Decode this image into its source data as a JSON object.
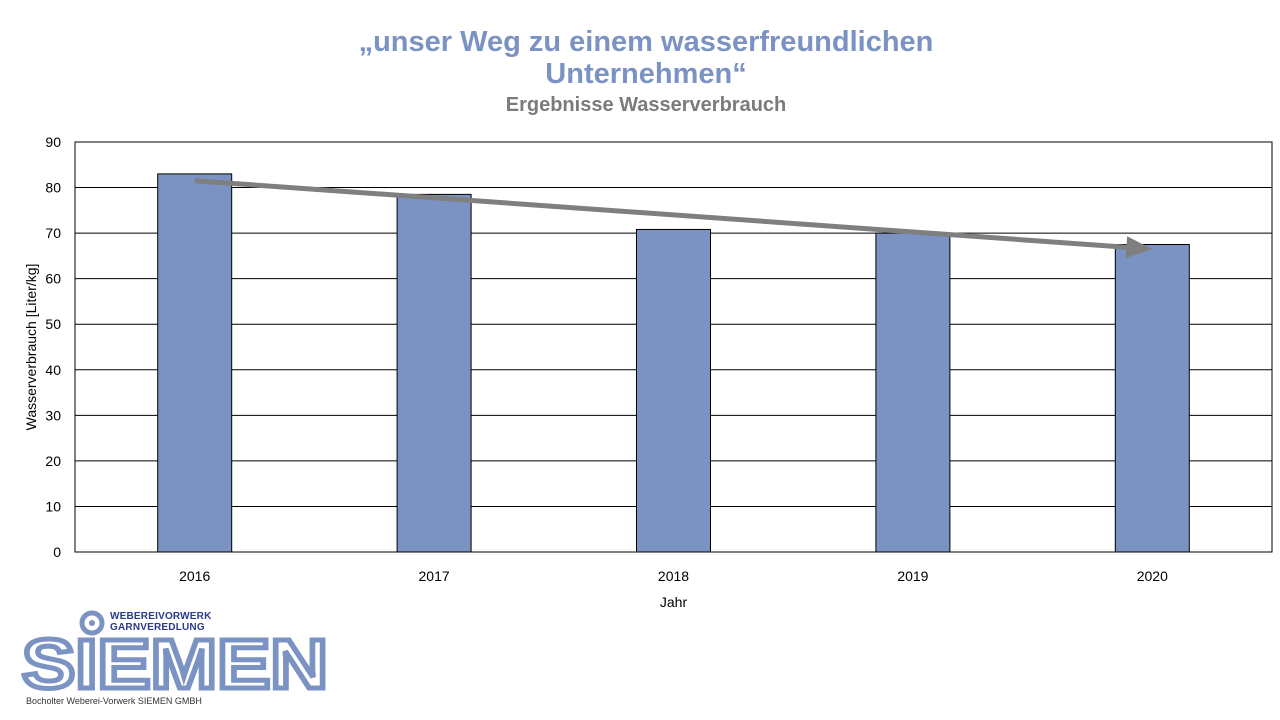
{
  "title": {
    "line1": "„unser Weg zu einem wasserfreundlichen",
    "line2": "Unternehmen“",
    "subtitle": "Ergebnisse Wasserverbrauch"
  },
  "chart_data": {
    "type": "bar",
    "categories": [
      "2016",
      "2017",
      "2018",
      "2019",
      "2020"
    ],
    "values": [
      83,
      78.5,
      70.8,
      70,
      67.5
    ],
    "xlabel": "Jahr",
    "ylabel": "Wasserverbrauch [Liter/kg]",
    "ylim": [
      0,
      90
    ],
    "yticks": [
      0,
      10,
      20,
      30,
      40,
      50,
      60,
      70,
      80,
      90
    ],
    "grid": true,
    "legend": "none",
    "trend_arrow": {
      "from": [
        "2016",
        81.5
      ],
      "to": [
        "2020",
        66.5
      ]
    },
    "colors": {
      "bar": "#7b93c3",
      "bar_border": "#000000",
      "trend": "#7f7f7f",
      "grid": "#000000"
    }
  },
  "logo": {
    "line1": "WEBEREIVORWERK",
    "line2": "GARNVEREDLUNG",
    "name": "SIEMEN",
    "footer": "Bocholter Weberei-Vorwerk SIEMEN GMBH",
    "color": "#7b93c3"
  }
}
